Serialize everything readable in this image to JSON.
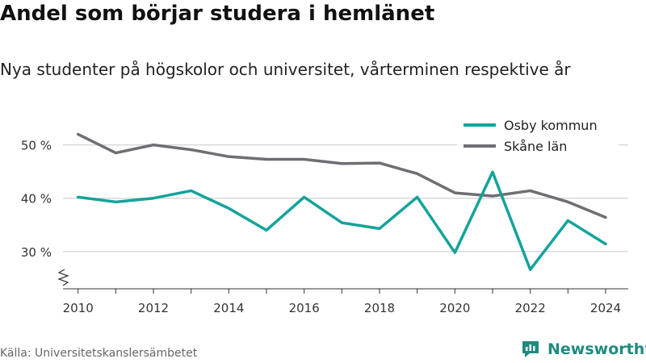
{
  "header": {
    "title": "Andel som börjar studera i hemlänet",
    "subtitle": "Nya studenter på högskolor och universitet, vårterminen respektive år"
  },
  "footer": {
    "source": "Källa: Universitetskanslersämbetet",
    "brand": "Newsworthy"
  },
  "colors": {
    "osby": "#13a39a",
    "skane": "#6e6e73",
    "grid": "#d9d9d9",
    "brand": "#1f8a80"
  },
  "icons": {
    "brand_logo": "newsworthy-logo-icon",
    "axis_break": "axis-break-icon"
  },
  "chart_data": {
    "type": "line",
    "x": [
      2010,
      2011,
      2012,
      2013,
      2014,
      2015,
      2016,
      2017,
      2018,
      2019,
      2020,
      2021,
      2022,
      2023,
      2024
    ],
    "x_tick_labels": [
      "2010",
      "2012",
      "2014",
      "2016",
      "2018",
      "2020",
      "2022",
      "2024"
    ],
    "y_tick_labels": [
      "30 %",
      "40 %",
      "50 %"
    ],
    "y_ticks": [
      30,
      40,
      50
    ],
    "ylim": [
      23,
      56
    ],
    "xlim": [
      2009.6,
      2024.6
    ],
    "grid": true,
    "y_axis_break": true,
    "legend_position": "top-right",
    "series": [
      {
        "name": "Osby kommun",
        "values": [
          40.2,
          39.3,
          40.0,
          41.4,
          38.1,
          34.0,
          40.2,
          35.4,
          34.3,
          40.2,
          29.8,
          44.9,
          26.6,
          35.8,
          31.4
        ]
      },
      {
        "name": "Skåne län",
        "values": [
          52.0,
          48.5,
          50.0,
          49.1,
          47.8,
          47.3,
          47.3,
          46.5,
          46.6,
          44.6,
          41.0,
          40.4,
          41.4,
          39.3,
          36.4
        ]
      }
    ]
  }
}
